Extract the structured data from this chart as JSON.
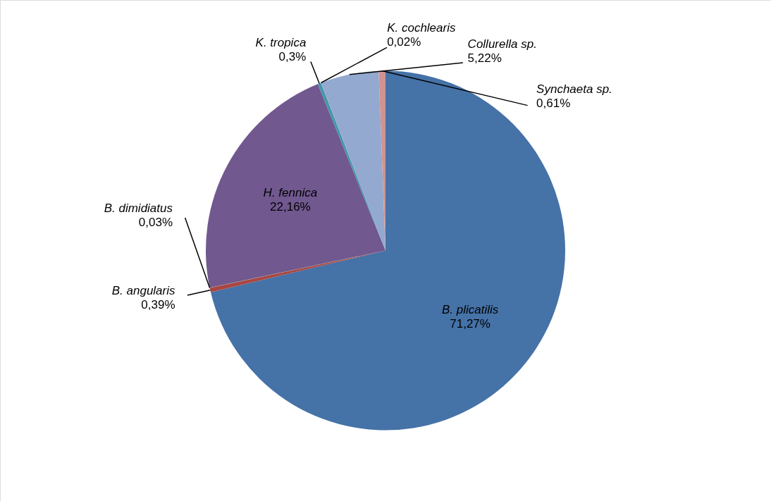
{
  "chart_data": {
    "type": "pie",
    "categories": [
      "B. plicatilis",
      "B. angularis",
      "B. dimidiatus",
      "H. fennica",
      "K. tropica",
      "K. cochlearis",
      "Collurella sp.",
      "Synchaeta sp."
    ],
    "values": [
      71.27,
      0.39,
      0.03,
      22.16,
      0.3,
      0.02,
      5.22,
      0.61
    ],
    "value_labels": [
      "71,27%",
      "0,39%",
      "0,03%",
      "22,16%",
      "0,3%",
      "0,02%",
      "5,22%",
      "0,61%"
    ],
    "colors": [
      "#4572a7",
      "#aa4643",
      "#89a54e",
      "#71588f",
      "#4198af",
      "#db843d",
      "#93a9cf",
      "#d19392"
    ]
  }
}
